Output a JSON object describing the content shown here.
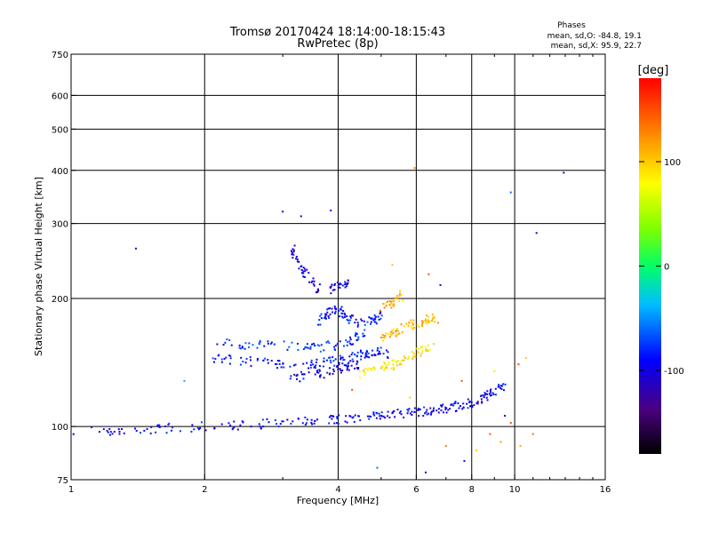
{
  "chart_data": {
    "type": "scatter",
    "title": "Tromsø 20170424 18:14:00-18:15:43",
    "subtitle": "RwPretec (8p)",
    "xlabel": "Frequency [MHz]",
    "ylabel": "Stationary phase Virtual Height [km]",
    "x_scale": "log",
    "y_scale": "log",
    "xlim": [
      1,
      16
    ],
    "ylim": [
      75,
      750
    ],
    "x_ticks": [
      1,
      2,
      4,
      6,
      8,
      10,
      16
    ],
    "y_ticks": [
      75,
      100,
      200,
      300,
      400,
      500,
      600,
      750
    ],
    "grid": true,
    "phase_legend": {
      "title": "Phases",
      "line1": "mean, sd,O: -84.8, 19.1",
      "line2": "mean, sd,X:  95.9, 22.7"
    },
    "colorbar": {
      "label": "[deg]",
      "min": -180,
      "max": 180,
      "ticks": [
        100,
        0,
        -100
      ],
      "position": "right"
    },
    "traces": [
      {
        "x": [
          1.0,
          1.3,
          1.6,
          2.0,
          2.5,
          3.0,
          3.5,
          4.0,
          4.5,
          5.0,
          5.5,
          6.0,
          6.5,
          7.0,
          7.5,
          8.0,
          8.5,
          9.0,
          9.5
        ],
        "y": [
          97,
          98,
          99,
          100,
          101,
          102,
          103,
          104,
          105,
          106,
          107,
          108,
          109,
          110,
          112,
          114,
          117,
          120,
          125
        ],
        "phase": -95
      },
      {
        "x": [
          2.1,
          2.4,
          2.8,
          3.2,
          3.6,
          4.0,
          4.3,
          4.6,
          4.9,
          5.2
        ],
        "y": [
          145,
          143,
          141,
          140,
          141,
          143,
          145,
          148,
          150,
          148
        ],
        "phase": -90
      },
      {
        "x": [
          2.1,
          2.5,
          3.0,
          3.5,
          3.9,
          4.3,
          4.6
        ],
        "y": [
          158,
          156,
          155,
          153,
          155,
          160,
          165
        ],
        "phase": -80
      },
      {
        "x": [
          3.1,
          3.5,
          3.9,
          4.2,
          4.5
        ],
        "y": [
          130,
          132,
          135,
          138,
          140
        ],
        "phase": -100
      },
      {
        "x": [
          3.6,
          3.8,
          4.0,
          4.2,
          4.5,
          4.8,
          5.0
        ],
        "y": [
          175,
          185,
          190,
          180,
          175,
          178,
          182
        ],
        "phase": -90
      },
      {
        "x": [
          3.8,
          4.0,
          4.3
        ],
        "y": [
          210,
          215,
          220
        ],
        "phase": -100
      },
      {
        "x": [
          3.15,
          3.25,
          3.4,
          3.6
        ],
        "y": [
          260,
          245,
          225,
          210
        ],
        "phase": -100
      },
      {
        "x": [
          4.5,
          4.9,
          5.3,
          5.7,
          6.1,
          6.5
        ],
        "y": [
          132,
          136,
          140,
          145,
          150,
          155
        ],
        "phase": 90
      },
      {
        "x": [
          5.0,
          5.3,
          5.6,
          6.0,
          6.4,
          6.7
        ],
        "y": [
          160,
          165,
          170,
          175,
          180,
          178
        ],
        "phase": 110
      },
      {
        "x": [
          5.0,
          5.3,
          5.6
        ],
        "y": [
          190,
          195,
          205
        ],
        "phase": 110
      }
    ],
    "scattered_points": [
      {
        "x": 1.4,
        "y": 262,
        "phase": -100
      },
      {
        "x": 3.0,
        "y": 320,
        "phase": -100
      },
      {
        "x": 3.3,
        "y": 312,
        "phase": -90
      },
      {
        "x": 3.85,
        "y": 322,
        "phase": -100
      },
      {
        "x": 5.95,
        "y": 405,
        "phase": 130
      },
      {
        "x": 9.8,
        "y": 355,
        "phase": -60
      },
      {
        "x": 11.2,
        "y": 285,
        "phase": -100
      },
      {
        "x": 12.9,
        "y": 395,
        "phase": -100
      },
      {
        "x": 1.8,
        "y": 128,
        "phase": -40
      },
      {
        "x": 4.9,
        "y": 80,
        "phase": -60
      },
      {
        "x": 6.3,
        "y": 78,
        "phase": -100
      },
      {
        "x": 7.0,
        "y": 90,
        "phase": 130
      },
      {
        "x": 8.2,
        "y": 88,
        "phase": 100
      },
      {
        "x": 8.8,
        "y": 96,
        "phase": 150
      },
      {
        "x": 9.3,
        "y": 92,
        "phase": 120
      },
      {
        "x": 9.8,
        "y": 102,
        "phase": 150
      },
      {
        "x": 10.3,
        "y": 90,
        "phase": 110
      },
      {
        "x": 11.0,
        "y": 96,
        "phase": 140
      },
      {
        "x": 9.0,
        "y": 135,
        "phase": 90
      },
      {
        "x": 10.2,
        "y": 140,
        "phase": 150
      },
      {
        "x": 10.6,
        "y": 145,
        "phase": 100
      },
      {
        "x": 7.6,
        "y": 128,
        "phase": 150
      },
      {
        "x": 6.8,
        "y": 215,
        "phase": -90
      },
      {
        "x": 6.4,
        "y": 228,
        "phase": 150
      },
      {
        "x": 5.3,
        "y": 240,
        "phase": 100
      },
      {
        "x": 7.7,
        "y": 83,
        "phase": -100
      },
      {
        "x": 9.5,
        "y": 106,
        "phase": -100
      },
      {
        "x": 4.3,
        "y": 122,
        "phase": 150
      },
      {
        "x": 5.8,
        "y": 117,
        "phase": 100
      }
    ]
  }
}
